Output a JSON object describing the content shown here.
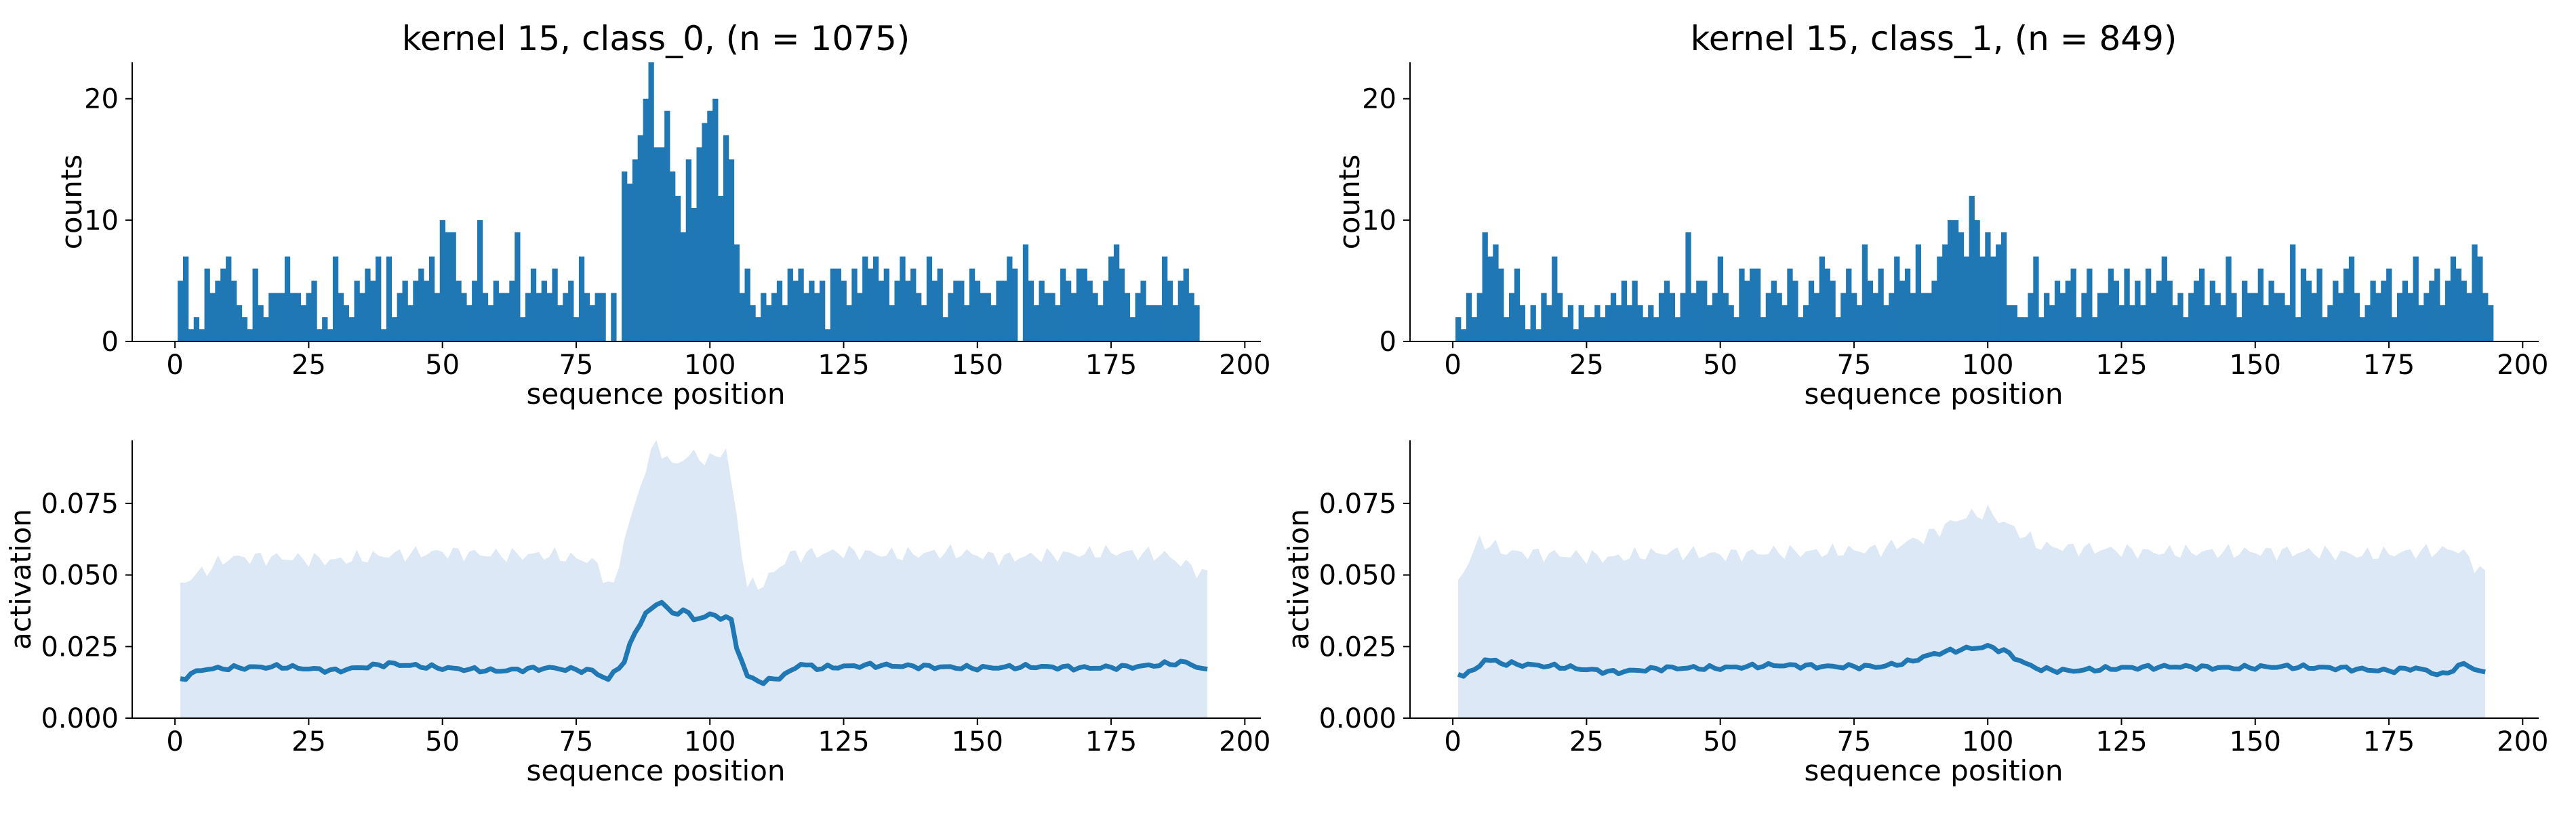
{
  "chart_data": [
    {
      "panel": "top-left",
      "type": "bar",
      "title": "kernel 15, class_0, (n = 1075)",
      "xlabel": "sequence position",
      "ylabel": "counts",
      "xlim": [
        -8,
        203
      ],
      "ylim": [
        0,
        23
      ],
      "xticks": [
        0,
        25,
        50,
        75,
        100,
        125,
        150,
        175,
        200
      ],
      "yticks": [
        0,
        10,
        20
      ],
      "color": "#1f77b4",
      "x_start": 1,
      "values": [
        5,
        7,
        1,
        2,
        1,
        6,
        4,
        5,
        6,
        7,
        5,
        3,
        2,
        1,
        6,
        3,
        2,
        4,
        4,
        4,
        7,
        4,
        4,
        3,
        4,
        5,
        1,
        2,
        1,
        7,
        4,
        3,
        2,
        5,
        4,
        6,
        5,
        7,
        1,
        7,
        2,
        4,
        5,
        3,
        5,
        6,
        5,
        7,
        4,
        10,
        9,
        9,
        5,
        4,
        3,
        5,
        10,
        4,
        3,
        5,
        4,
        4,
        5,
        9,
        2,
        4,
        6,
        4,
        5,
        4,
        6,
        3,
        4,
        5,
        2,
        7,
        4,
        3,
        4,
        4,
        0,
        4,
        0,
        14,
        13,
        15,
        17,
        20,
        23,
        16,
        16,
        19,
        14,
        12,
        9,
        15,
        11,
        16,
        18,
        19,
        20,
        12,
        17,
        15,
        8,
        4,
        6,
        3,
        2,
        4,
        3,
        4,
        5,
        3,
        6,
        5,
        6,
        4,
        5,
        4,
        5,
        1,
        6,
        6,
        5,
        3,
        6,
        4,
        7,
        6,
        7,
        5,
        6,
        3,
        5,
        7,
        5,
        6,
        4,
        3,
        7,
        5,
        6,
        2,
        4,
        5,
        5,
        3,
        6,
        5,
        4,
        4,
        3,
        5,
        5,
        7,
        6,
        0,
        8,
        5,
        3,
        5,
        4,
        4,
        3,
        6,
        5,
        4,
        6,
        6,
        5,
        4,
        3,
        5,
        7,
        8,
        6,
        4,
        2,
        4,
        5,
        3,
        3,
        3,
        7,
        5,
        3,
        5,
        6,
        4,
        3
      ],
      "gaps_note": ""
    },
    {
      "panel": "top-right",
      "type": "bar",
      "title": "kernel 15, class_1, (n = 849)",
      "xlabel": "sequence position",
      "ylabel": "counts",
      "xlim": [
        -8,
        203
      ],
      "ylim": [
        0,
        23
      ],
      "xticks": [
        0,
        25,
        50,
        75,
        100,
        125,
        150,
        175,
        200
      ],
      "yticks": [
        0,
        10,
        20
      ],
      "color": "#1f77b4",
      "x_start": 1,
      "values": [
        2,
        1,
        4,
        2,
        4,
        9,
        7,
        8,
        6,
        2,
        4,
        6,
        3,
        1,
        3,
        1,
        4,
        3,
        7,
        4,
        2,
        3,
        1,
        3,
        2,
        2,
        3,
        2,
        3,
        4,
        3,
        5,
        3,
        5,
        3,
        2,
        3,
        2,
        4,
        5,
        4,
        2,
        4,
        9,
        4,
        5,
        5,
        3,
        4,
        7,
        4,
        3,
        2,
        6,
        5,
        6,
        6,
        2,
        4,
        5,
        4,
        3,
        6,
        5,
        2,
        3,
        5,
        4,
        7,
        6,
        5,
        2,
        4,
        6,
        4,
        3,
        8,
        5,
        4,
        6,
        3,
        4,
        7,
        5,
        6,
        4,
        8,
        4,
        4,
        5,
        7,
        8,
        10,
        10,
        9,
        7,
        12,
        10,
        7,
        9,
        7,
        8,
        9,
        3,
        3,
        2,
        2,
        4,
        7,
        2,
        4,
        3,
        5,
        4,
        5,
        6,
        2,
        4,
        6,
        2,
        4,
        4,
        6,
        5,
        3,
        6,
        3,
        5,
        3,
        6,
        4,
        5,
        7,
        5,
        3,
        4,
        2,
        4,
        5,
        6,
        3,
        5,
        4,
        3,
        7,
        4,
        2,
        5,
        4,
        4,
        6,
        3,
        5,
        4,
        4,
        3,
        8,
        2,
        6,
        5,
        4,
        6,
        2,
        3,
        5,
        4,
        6,
        7,
        4,
        2,
        3,
        5,
        4,
        5,
        6,
        2,
        4,
        5,
        4,
        7,
        3,
        4,
        5,
        6,
        3,
        5,
        7,
        6,
        5,
        4,
        8,
        7,
        4,
        3
      ],
      "gaps_note": ""
    },
    {
      "panel": "bottom-left",
      "type": "area",
      "title": "",
      "xlabel": "sequence position",
      "ylabel": "activation",
      "xlim": [
        -8,
        203
      ],
      "ylim": [
        0,
        0.097
      ],
      "xticks": [
        0,
        25,
        50,
        75,
        100,
        125,
        150,
        175,
        200
      ],
      "yticks": [
        0.0,
        0.025,
        0.05,
        0.075
      ],
      "ytick_labels": [
        "0.000",
        "0.025",
        "0.050",
        "0.075"
      ],
      "mean_color": "#1f77b4",
      "band_color": "#dce8f5",
      "x_start": 1,
      "x_end": 193,
      "mean_keypoints": [
        [
          1,
          0.0135
        ],
        [
          5,
          0.017
        ],
        [
          10,
          0.0175
        ],
        [
          20,
          0.018
        ],
        [
          30,
          0.0165
        ],
        [
          40,
          0.019
        ],
        [
          50,
          0.0175
        ],
        [
          60,
          0.0165
        ],
        [
          70,
          0.0175
        ],
        [
          78,
          0.0165
        ],
        [
          81,
          0.0135
        ],
        [
          84,
          0.02
        ],
        [
          86,
          0.03
        ],
        [
          88,
          0.0365
        ],
        [
          91,
          0.041
        ],
        [
          93,
          0.036
        ],
        [
          95,
          0.038
        ],
        [
          97,
          0.0345
        ],
        [
          100,
          0.036
        ],
        [
          103,
          0.035
        ],
        [
          104,
          0.034
        ],
        [
          105,
          0.025
        ],
        [
          107,
          0.0145
        ],
        [
          110,
          0.0125
        ],
        [
          114,
          0.015
        ],
        [
          117,
          0.019
        ],
        [
          120,
          0.0175
        ],
        [
          130,
          0.0185
        ],
        [
          140,
          0.018
        ],
        [
          150,
          0.0175
        ],
        [
          160,
          0.018
        ],
        [
          170,
          0.0175
        ],
        [
          180,
          0.018
        ],
        [
          189,
          0.0195
        ],
        [
          193,
          0.0165
        ]
      ],
      "upper_keypoints": [
        [
          1,
          0.047
        ],
        [
          10,
          0.056
        ],
        [
          20,
          0.056
        ],
        [
          30,
          0.055
        ],
        [
          40,
          0.057
        ],
        [
          50,
          0.058
        ],
        [
          60,
          0.057
        ],
        [
          70,
          0.057
        ],
        [
          78,
          0.055
        ],
        [
          82,
          0.045
        ],
        [
          84,
          0.063
        ],
        [
          86,
          0.074
        ],
        [
          88,
          0.088
        ],
        [
          90,
          0.096
        ],
        [
          93,
          0.088
        ],
        [
          96,
          0.092
        ],
        [
          100,
          0.09
        ],
        [
          103,
          0.094
        ],
        [
          105,
          0.07
        ],
        [
          107,
          0.046
        ],
        [
          110,
          0.047
        ],
        [
          115,
          0.057
        ],
        [
          125,
          0.058
        ],
        [
          135,
          0.057
        ],
        [
          145,
          0.058
        ],
        [
          155,
          0.056
        ],
        [
          165,
          0.057
        ],
        [
          175,
          0.058
        ],
        [
          185,
          0.057
        ],
        [
          193,
          0.05
        ]
      ],
      "lower_keypoints": [
        [
          1,
          0.0
        ],
        [
          193,
          0.0
        ]
      ]
    },
    {
      "panel": "bottom-right",
      "type": "area",
      "title": "",
      "xlabel": "sequence position",
      "ylabel": "activation",
      "xlim": [
        -8,
        203
      ],
      "ylim": [
        0,
        0.097
      ],
      "xticks": [
        0,
        25,
        50,
        75,
        100,
        125,
        150,
        175,
        200
      ],
      "yticks": [
        0.0,
        0.025,
        0.05,
        0.075
      ],
      "ytick_labels": [
        "0.000",
        "0.025",
        "0.050",
        "0.075"
      ],
      "mean_color": "#1f77b4",
      "band_color": "#dce8f5",
      "x_start": 1,
      "x_end": 193,
      "mean_keypoints": [
        [
          1,
          0.015
        ],
        [
          4,
          0.0165
        ],
        [
          6,
          0.0205
        ],
        [
          10,
          0.019
        ],
        [
          20,
          0.018
        ],
        [
          30,
          0.016
        ],
        [
          40,
          0.0175
        ],
        [
          50,
          0.0175
        ],
        [
          60,
          0.0185
        ],
        [
          70,
          0.018
        ],
        [
          80,
          0.018
        ],
        [
          85,
          0.0195
        ],
        [
          90,
          0.0225
        ],
        [
          95,
          0.024
        ],
        [
          100,
          0.025
        ],
        [
          103,
          0.0235
        ],
        [
          107,
          0.019
        ],
        [
          110,
          0.017
        ],
        [
          115,
          0.0165
        ],
        [
          125,
          0.0175
        ],
        [
          135,
          0.018
        ],
        [
          145,
          0.0175
        ],
        [
          155,
          0.018
        ],
        [
          165,
          0.0175
        ],
        [
          175,
          0.0165
        ],
        [
          180,
          0.0175
        ],
        [
          185,
          0.015
        ],
        [
          189,
          0.019
        ],
        [
          193,
          0.0155
        ]
      ],
      "upper_keypoints": [
        [
          1,
          0.048
        ],
        [
          5,
          0.062
        ],
        [
          10,
          0.058
        ],
        [
          20,
          0.057
        ],
        [
          30,
          0.056
        ],
        [
          40,
          0.058
        ],
        [
          50,
          0.057
        ],
        [
          60,
          0.058
        ],
        [
          70,
          0.058
        ],
        [
          80,
          0.059
        ],
        [
          88,
          0.063
        ],
        [
          95,
          0.07
        ],
        [
          100,
          0.072
        ],
        [
          105,
          0.066
        ],
        [
          110,
          0.06
        ],
        [
          120,
          0.059
        ],
        [
          130,
          0.058
        ],
        [
          140,
          0.058
        ],
        [
          150,
          0.058
        ],
        [
          160,
          0.058
        ],
        [
          170,
          0.057
        ],
        [
          180,
          0.058
        ],
        [
          188,
          0.059
        ],
        [
          193,
          0.05
        ]
      ],
      "lower_keypoints": [
        [
          1,
          0.0
        ],
        [
          193,
          0.0
        ]
      ]
    }
  ]
}
